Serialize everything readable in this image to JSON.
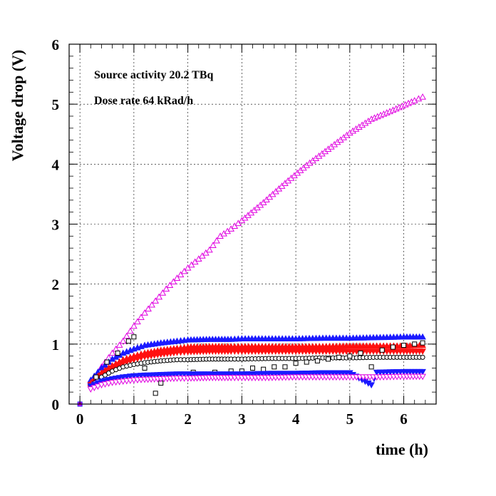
{
  "chart_data": {
    "type": "scatter",
    "title": "",
    "xlabel": "time (h)",
    "ylabel": "Voltage drop (V)",
    "xlim": [
      -0.2,
      6.6
    ],
    "ylim": [
      0,
      6
    ],
    "x_ticks": [
      0,
      1,
      2,
      3,
      4,
      5,
      6
    ],
    "y_ticks": [
      0,
      1,
      2,
      3,
      4,
      5,
      6
    ],
    "grid": true,
    "annotations": [
      "Source activity 20.2 TBq",
      "Dose rate 64 kRad/h"
    ],
    "origin_point": {
      "x": 0,
      "y": 0
    },
    "series": [
      {
        "marker": "triangle-up-open",
        "color": "#e000e0",
        "x": [
          0.2,
          0.4,
          0.6,
          0.8,
          1.0,
          1.2,
          1.4,
          1.6,
          1.8,
          2.0,
          2.2,
          2.4,
          2.6,
          2.8,
          3.0,
          3.4,
          3.8,
          4.2,
          4.6,
          5.0,
          5.4,
          5.8,
          6.2,
          6.35
        ],
        "y": [
          0.35,
          0.62,
          0.85,
          1.05,
          1.3,
          1.52,
          1.72,
          1.92,
          2.1,
          2.27,
          2.42,
          2.57,
          2.8,
          2.92,
          3.06,
          3.36,
          3.68,
          3.98,
          4.25,
          4.52,
          4.75,
          4.9,
          5.06,
          5.12
        ]
      },
      {
        "marker": "triangle-up",
        "color": "#1a1aff",
        "x": [
          0.2,
          0.4,
          0.6,
          0.8,
          1.0,
          1.2,
          1.5,
          1.8,
          2.0,
          2.4,
          2.8,
          3.0,
          3.5,
          4.0,
          4.5,
          5.0,
          5.5,
          6.0,
          6.35
        ],
        "y": [
          0.4,
          0.6,
          0.75,
          0.85,
          0.92,
          0.98,
          1.02,
          1.05,
          1.07,
          1.08,
          1.08,
          1.09,
          1.09,
          1.09,
          1.1,
          1.1,
          1.11,
          1.12,
          1.12
        ]
      },
      {
        "marker": "triangle-up",
        "color": "#ff1010",
        "x": [
          0.2,
          0.4,
          0.6,
          0.8,
          1.0,
          1.2,
          1.5,
          1.8,
          2.0,
          2.4,
          2.8,
          3.0,
          3.5,
          4.0,
          4.5,
          5.0,
          5.5,
          6.0,
          6.35
        ],
        "y": [
          0.35,
          0.52,
          0.64,
          0.74,
          0.8,
          0.85,
          0.9,
          0.93,
          0.95,
          0.96,
          0.96,
          0.96,
          0.96,
          0.96,
          0.96,
          0.97,
          0.97,
          0.97,
          0.98
        ]
      },
      {
        "marker": "triangle-down",
        "color": "#ff1010",
        "x": [
          0.2,
          0.4,
          0.6,
          0.8,
          1.0,
          1.2,
          1.5,
          1.8,
          2.0,
          2.4,
          2.8,
          3.0,
          3.5,
          4.0,
          4.5,
          5.0,
          5.5,
          6.0,
          6.35
        ],
        "y": [
          0.32,
          0.48,
          0.6,
          0.68,
          0.74,
          0.79,
          0.83,
          0.86,
          0.87,
          0.88,
          0.88,
          0.88,
          0.88,
          0.88,
          0.88,
          0.88,
          0.88,
          0.88,
          0.88
        ]
      },
      {
        "marker": "circle-open",
        "color": "#000000",
        "x": [
          0.2,
          0.4,
          0.6,
          0.8,
          1.0,
          1.2,
          1.5,
          1.8,
          2.0,
          2.4,
          2.8,
          3.0,
          3.5,
          4.0,
          4.5,
          5.0,
          5.5,
          6.0,
          6.35
        ],
        "y": [
          0.3,
          0.45,
          0.55,
          0.62,
          0.66,
          0.69,
          0.72,
          0.74,
          0.74,
          0.75,
          0.75,
          0.75,
          0.76,
          0.76,
          0.77,
          0.77,
          0.78,
          0.78,
          0.78
        ]
      },
      {
        "marker": "square-open",
        "color": "#000000",
        "x": [
          0.3,
          0.5,
          0.7,
          0.9,
          1.0,
          1.2,
          1.4,
          1.5,
          1.7,
          1.9,
          2.1,
          2.3,
          2.5,
          2.8,
          3.0,
          3.2,
          3.4,
          3.6,
          3.8,
          4.0,
          4.2,
          4.4,
          4.6,
          4.8,
          5.0,
          5.2,
          5.4,
          5.6,
          5.8,
          6.0,
          6.2,
          6.35
        ],
        "y": [
          0.45,
          0.7,
          0.85,
          1.05,
          1.12,
          0.6,
          0.18,
          0.35,
          0.48,
          0.5,
          0.53,
          0.5,
          0.53,
          0.55,
          0.55,
          0.6,
          0.58,
          0.62,
          0.62,
          0.68,
          0.7,
          0.72,
          0.75,
          0.78,
          0.8,
          0.85,
          0.62,
          0.9,
          0.95,
          0.98,
          1.0,
          1.02
        ]
      },
      {
        "marker": "triangle-down",
        "color": "#1a1aff",
        "x": [
          0.2,
          0.4,
          0.6,
          0.8,
          1.0,
          1.2,
          1.5,
          1.8,
          2.0,
          2.4,
          2.8,
          3.0,
          3.5,
          4.0,
          4.5,
          5.0,
          5.4,
          5.5,
          6.0,
          6.35
        ],
        "y": [
          0.3,
          0.38,
          0.42,
          0.45,
          0.47,
          0.48,
          0.49,
          0.5,
          0.5,
          0.5,
          0.5,
          0.5,
          0.51,
          0.51,
          0.52,
          0.52,
          0.32,
          0.53,
          0.54,
          0.54
        ]
      },
      {
        "marker": "triangle-down-open",
        "color": "#e000e0",
        "x": [
          0.2,
          0.4,
          0.6,
          0.8,
          1.0,
          1.2,
          1.5,
          1.8,
          2.0,
          2.4,
          2.8,
          3.0,
          3.5,
          4.0,
          4.5,
          5.0,
          5.5,
          6.0,
          6.35
        ],
        "y": [
          0.25,
          0.32,
          0.36,
          0.38,
          0.4,
          0.41,
          0.42,
          0.43,
          0.43,
          0.44,
          0.44,
          0.44,
          0.44,
          0.45,
          0.45,
          0.45,
          0.45,
          0.46,
          0.46
        ]
      }
    ]
  }
}
